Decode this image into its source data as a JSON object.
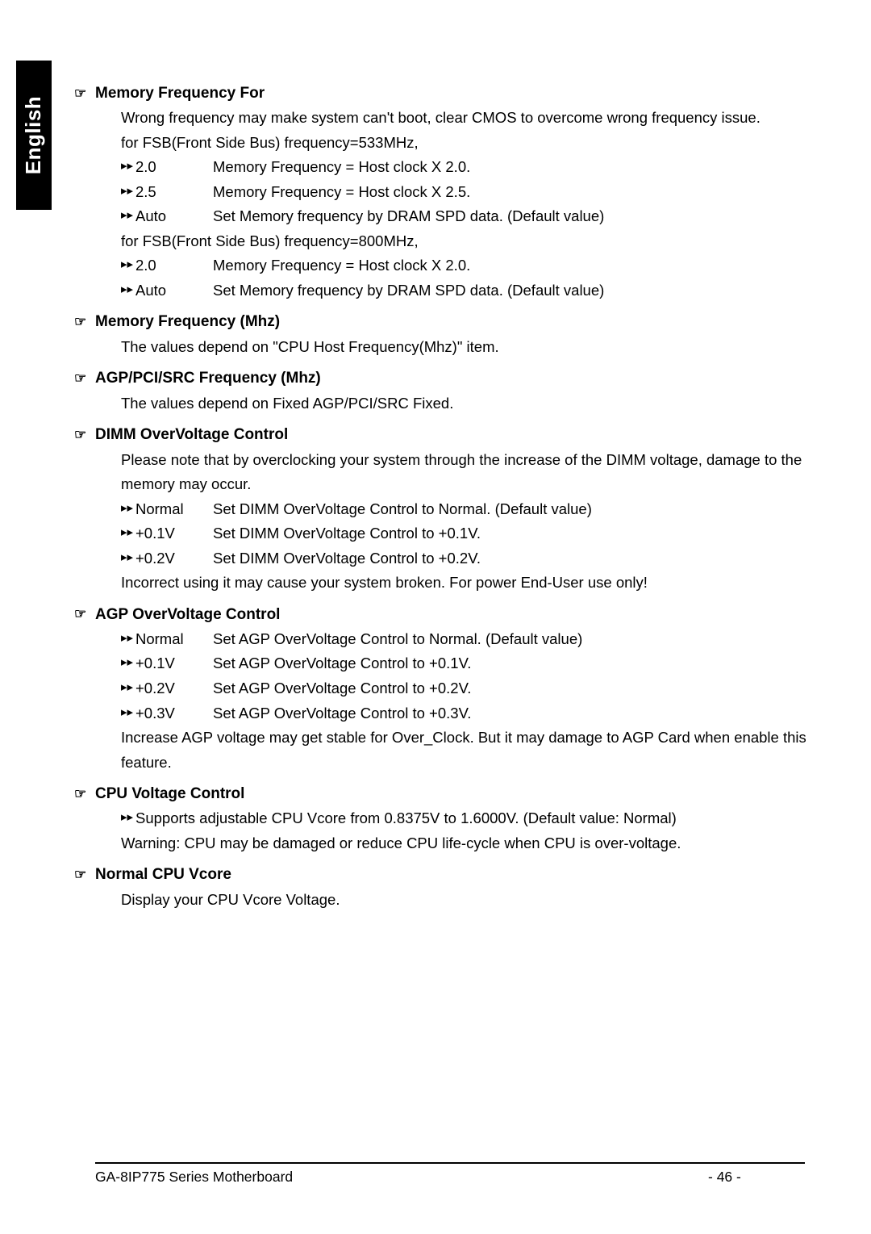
{
  "sidebar": {
    "label": "English"
  },
  "sections": [
    {
      "title": "Memory Frequency For",
      "lines": [
        {
          "type": "text",
          "text": "Wrong frequency may make system can't boot, clear CMOS to overcome wrong frequency issue."
        },
        {
          "type": "text",
          "text": " for FSB(Front Side Bus) frequency=533MHz,"
        },
        {
          "type": "opt",
          "key": "2.0",
          "desc": "Memory Frequency = Host clock X 2.0."
        },
        {
          "type": "opt",
          "key": "2.5",
          "desc": "Memory Frequency = Host clock X 2.5."
        },
        {
          "type": "opt",
          "key": "Auto",
          "desc": "Set Memory frequency by DRAM SPD data. (Default value)"
        },
        {
          "type": "text",
          "text": "for FSB(Front Side Bus) frequency=800MHz,"
        },
        {
          "type": "opt",
          "key": "2.0",
          "desc": "Memory Frequency = Host clock X 2.0."
        },
        {
          "type": "opt",
          "key": "Auto",
          "desc": "Set Memory frequency by DRAM SPD data. (Default value)"
        }
      ]
    },
    {
      "title": "Memory Frequency (Mhz)",
      "lines": [
        {
          "type": "text",
          "text": "The values depend on \"CPU Host Frequency(Mhz)\" item."
        }
      ]
    },
    {
      "title": "AGP/PCI/SRC Frequency (Mhz)",
      "lines": [
        {
          "type": "text",
          "text": "The values depend on Fixed AGP/PCI/SRC Fixed."
        }
      ]
    },
    {
      "title": "DIMM OverVoltage Control",
      "lines": [
        {
          "type": "text",
          "text": "Please note that by overclocking your system through the increase of the DIMM voltage, damage to the memory may occur."
        },
        {
          "type": "opt",
          "key": "Normal",
          "desc": "Set DIMM OverVoltage Control to Normal. (Default value)"
        },
        {
          "type": "opt",
          "key": "+0.1V",
          "desc": "Set DIMM OverVoltage Control to +0.1V."
        },
        {
          "type": "opt",
          "key": "+0.2V",
          "desc": "Set DIMM OverVoltage Control to +0.2V."
        },
        {
          "type": "text",
          "text": "Incorrect using it may cause your system broken. For power End-User use only!"
        }
      ]
    },
    {
      "title": "AGP OverVoltage Control",
      "lines": [
        {
          "type": "opt",
          "key": "Normal",
          "desc": "Set AGP OverVoltage Control to Normal. (Default value)"
        },
        {
          "type": "opt",
          "key": "+0.1V",
          "desc": "Set AGP OverVoltage Control to +0.1V."
        },
        {
          "type": "opt",
          "key": "+0.2V",
          "desc": "Set AGP OverVoltage Control to +0.2V."
        },
        {
          "type": "opt",
          "key": "+0.3V",
          "desc": "Set AGP OverVoltage Control to +0.3V."
        },
        {
          "type": "text",
          "text": "Increase AGP voltage may get stable for Over_Clock. But it may damage to AGP Card when enable this feature."
        }
      ]
    },
    {
      "title": "CPU Voltage Control",
      "lines": [
        {
          "type": "opt",
          "key": "",
          "desc": "Supports adjustable CPU Vcore from 0.8375V to 1.6000V. (Default value: Normal)",
          "noKey": true
        },
        {
          "type": "text",
          "text": "Warning: CPU may be damaged or reduce CPU life-cycle when CPU is over-voltage."
        }
      ]
    },
    {
      "title": "Normal CPU Vcore",
      "lines": [
        {
          "type": "text",
          "text": "Display your CPU Vcore Voltage."
        }
      ]
    }
  ],
  "footer": {
    "left": "GA-8IP775 Series Motherboard",
    "center": "- 46 -"
  },
  "glyphs": {
    "hand": "☞",
    "arrow": "▸▸"
  }
}
